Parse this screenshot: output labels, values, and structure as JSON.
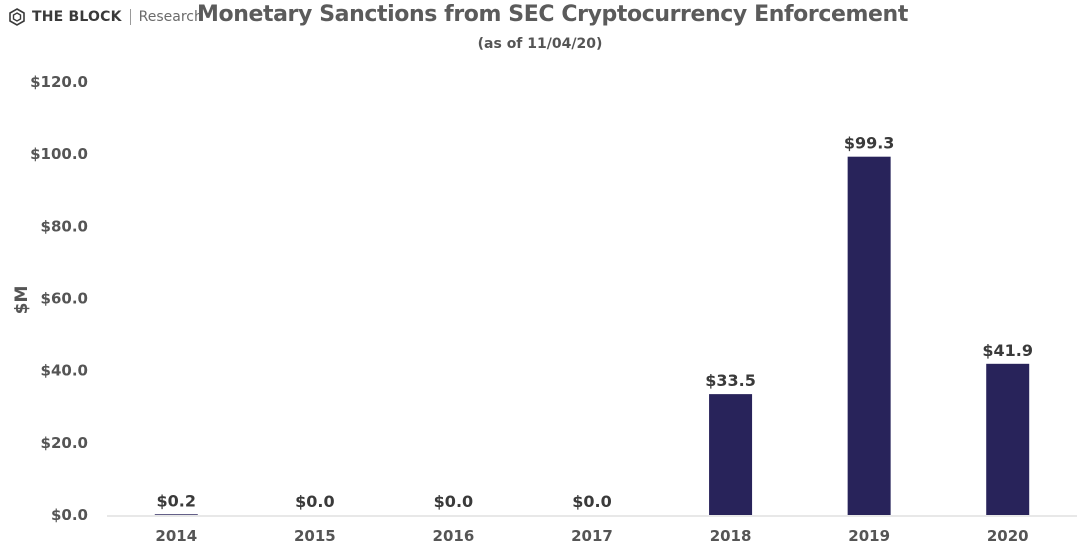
{
  "header": {
    "brand_name": "THE BLOCK",
    "brand_sub": "Research",
    "logo_icon": "the-block-cube-icon"
  },
  "chart_data": {
    "type": "bar",
    "title": "Monetary Sanctions from SEC Cryptocurrency Enforcement",
    "subtitle": "(as of 11/04/20)",
    "xlabel": "",
    "ylabel": "$M",
    "categories": [
      "2014",
      "2015",
      "2016",
      "2017",
      "2018",
      "2019",
      "2020"
    ],
    "values": [
      0.2,
      0.0,
      0.0,
      0.0,
      33.5,
      99.3,
      41.9
    ],
    "data_labels": [
      "$0.2",
      "$0.0",
      "$0.0",
      "$0.0",
      "$33.5",
      "$99.3",
      "$41.9"
    ],
    "ylim": [
      0,
      120
    ],
    "yticks": [
      0,
      20,
      40,
      60,
      80,
      100,
      120
    ],
    "ytick_labels": [
      "$0.0",
      "$20.0",
      "$40.0",
      "$60.0",
      "$80.0",
      "$100.0",
      "$120.0"
    ],
    "grid": false,
    "legend": "none",
    "bar_color": "#28235a",
    "axis_color": "#d0d0d0"
  }
}
